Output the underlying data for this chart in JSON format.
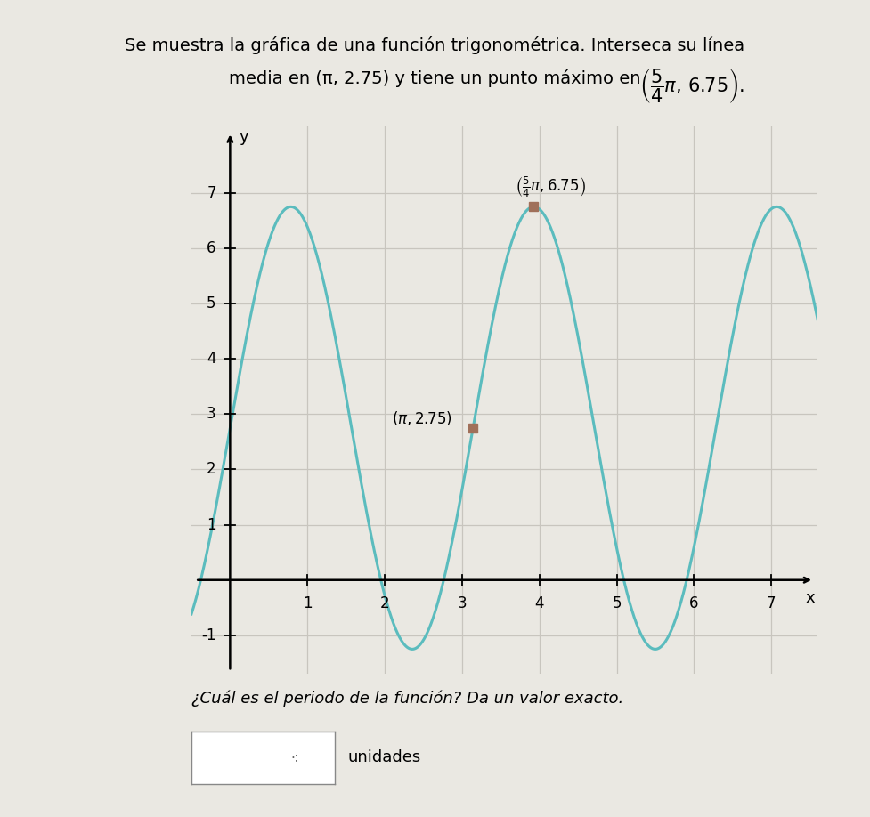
{
  "midline": 2.75,
  "amplitude": 4.0,
  "period_val": 3.14159265358979,
  "phase": 0.7853981633974483,
  "xlim": [
    -0.5,
    7.6
  ],
  "ylim": [
    -1.7,
    8.2
  ],
  "xticks": [
    1,
    2,
    3,
    4,
    5,
    6,
    7
  ],
  "yticks": [
    -1,
    1,
    2,
    3,
    4,
    5,
    6,
    7
  ],
  "curve_color": "#5BBCBE",
  "bg_color": "#EAE8E2",
  "grid_color": "#C8C5BE",
  "point1_x": 3.14159265358979,
  "point1_y": 2.75,
  "point2_x": 3.92699081698724,
  "point2_y": 6.75,
  "xlabel": "x",
  "ylabel": "y",
  "fig_bg": "#EAE8E2",
  "title_line1": "Se muestra la gráfica de una función trigonométrica. Interseca su línea",
  "title_line2": "media en (π, 2.75) y tiene un punto máximo en",
  "question": "¿Cuál es el periodo de la función? Da un valor exacto.",
  "answer_label": "unidades",
  "font_size_title": 14,
  "font_size_ticks": 12,
  "font_size_annot": 12
}
